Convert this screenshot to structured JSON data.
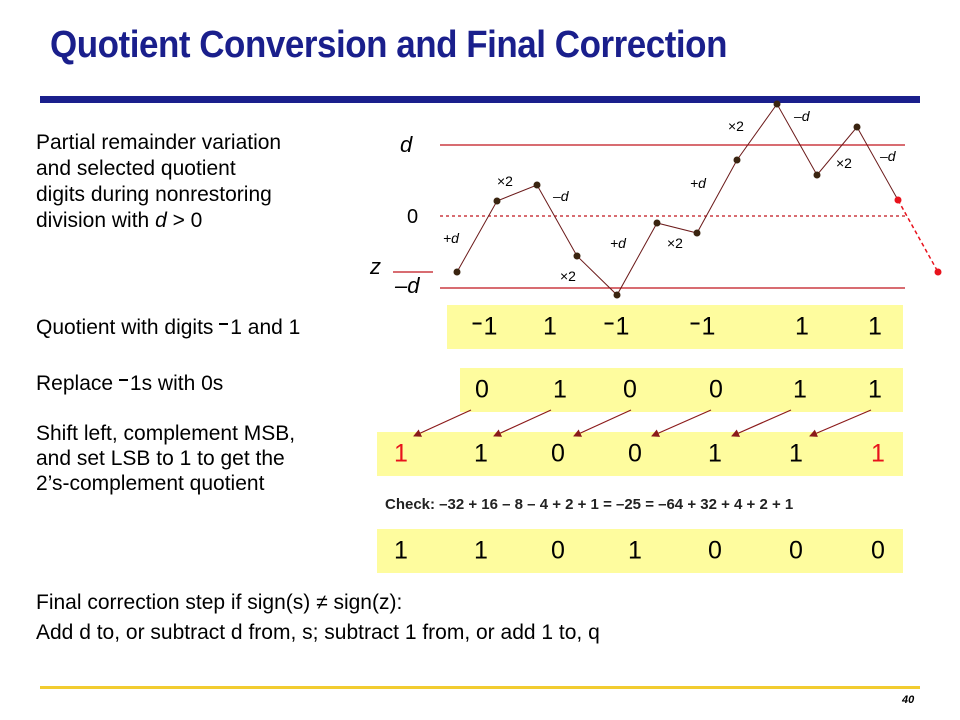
{
  "title": "Quotient Conversion and Final Correction",
  "page_number": "40",
  "description": {
    "line1": "Partial remainder variation",
    "line2": "and selected quotient",
    "line3": "digits during nonrestoring",
    "line4_prefix": "division with ",
    "line4_var": "d",
    "line4_suffix": " > 0"
  },
  "graph": {
    "label_d": "d",
    "label_zero": "0",
    "label_z": "z",
    "label_negd": "–d",
    "steps": [
      "+d",
      "×2",
      "–d",
      "×2",
      "+d",
      "×2",
      "+d",
      "×2",
      "–d",
      "×2",
      "–d"
    ]
  },
  "rows": {
    "quotient_label_a": "Quotient with digits ",
    "quotient_label_b": "1 and 1",
    "quotient_digits": [
      "1",
      "1",
      "1",
      "1",
      "1",
      "1"
    ],
    "quotient_negative": [
      true,
      false,
      true,
      true,
      false,
      false
    ],
    "replace_label_a": "Replace ",
    "replace_label_b": "1s with 0s",
    "replaced_digits": [
      "0",
      "1",
      "0",
      "0",
      "1",
      "1"
    ],
    "shift_label_1": "Shift left, complement MSB,",
    "shift_label_2": "and set LSB to 1 to get the",
    "shift_label_3": "2’s-complement quotient",
    "shifted_digits": [
      "1",
      "1",
      "0",
      "0",
      "1",
      "1",
      "1"
    ],
    "check": "Check:  –32 + 16 – 8 – 4 + 2 + 1 = –25 = –64 + 32 + 4 + 2 + 1",
    "final_digits": [
      "1",
      "1",
      "0",
      "1",
      "0",
      "0",
      "0"
    ]
  },
  "correction": {
    "line1": "Final correction step if sign(s) ≠ sign(z):",
    "line2": "Add d to, or subtract d from, s; subtract 1 from, or add 1 to, q"
  },
  "colors": {
    "title": "#1a1f8c",
    "rule": "#1a1f8c",
    "footer_rule": "#f2cc30",
    "box_fill": "#fefc9e",
    "graph_line": "#c0141c",
    "highlight": "#e8121c"
  }
}
